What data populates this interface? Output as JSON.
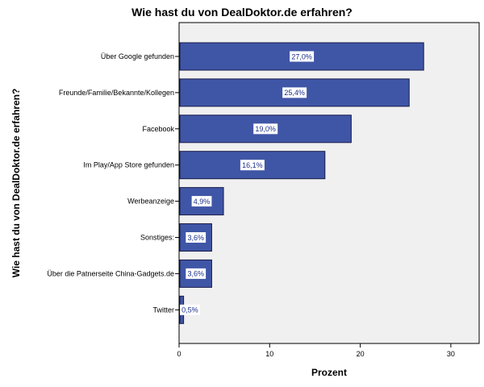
{
  "chart_data": {
    "type": "bar",
    "orientation": "horizontal",
    "title": "Wie hast du von DealDoktor.de erfahren?",
    "xlabel": "Prozent",
    "ylabel": "Wie hast du von DealDoktor.de erfahren?",
    "categories": [
      "Über Google gefunden",
      "Freunde/Familie/Bekannte/Kollegen",
      "Facebook",
      "Im Play/App Store gefunden",
      "Werbeanzeige",
      "Sonstiges:",
      "Über die Patnerseite China-Gadgets.de",
      "Twitter"
    ],
    "values": [
      27.0,
      25.4,
      19.0,
      16.1,
      4.9,
      3.6,
      3.6,
      0.5
    ],
    "data_labels": [
      "27,0%",
      "25,4%",
      "19,0%",
      "16,1%",
      "4,9%",
      "3,6%",
      "3,6%",
      "0,5%"
    ],
    "xlim": [
      0,
      33
    ],
    "xticks": [
      0,
      10,
      20,
      30
    ],
    "grid": false,
    "bar_color": "#3f56a6",
    "bar_edge_color": "#1a1a4a",
    "plot_background": "#f0f0f0"
  }
}
